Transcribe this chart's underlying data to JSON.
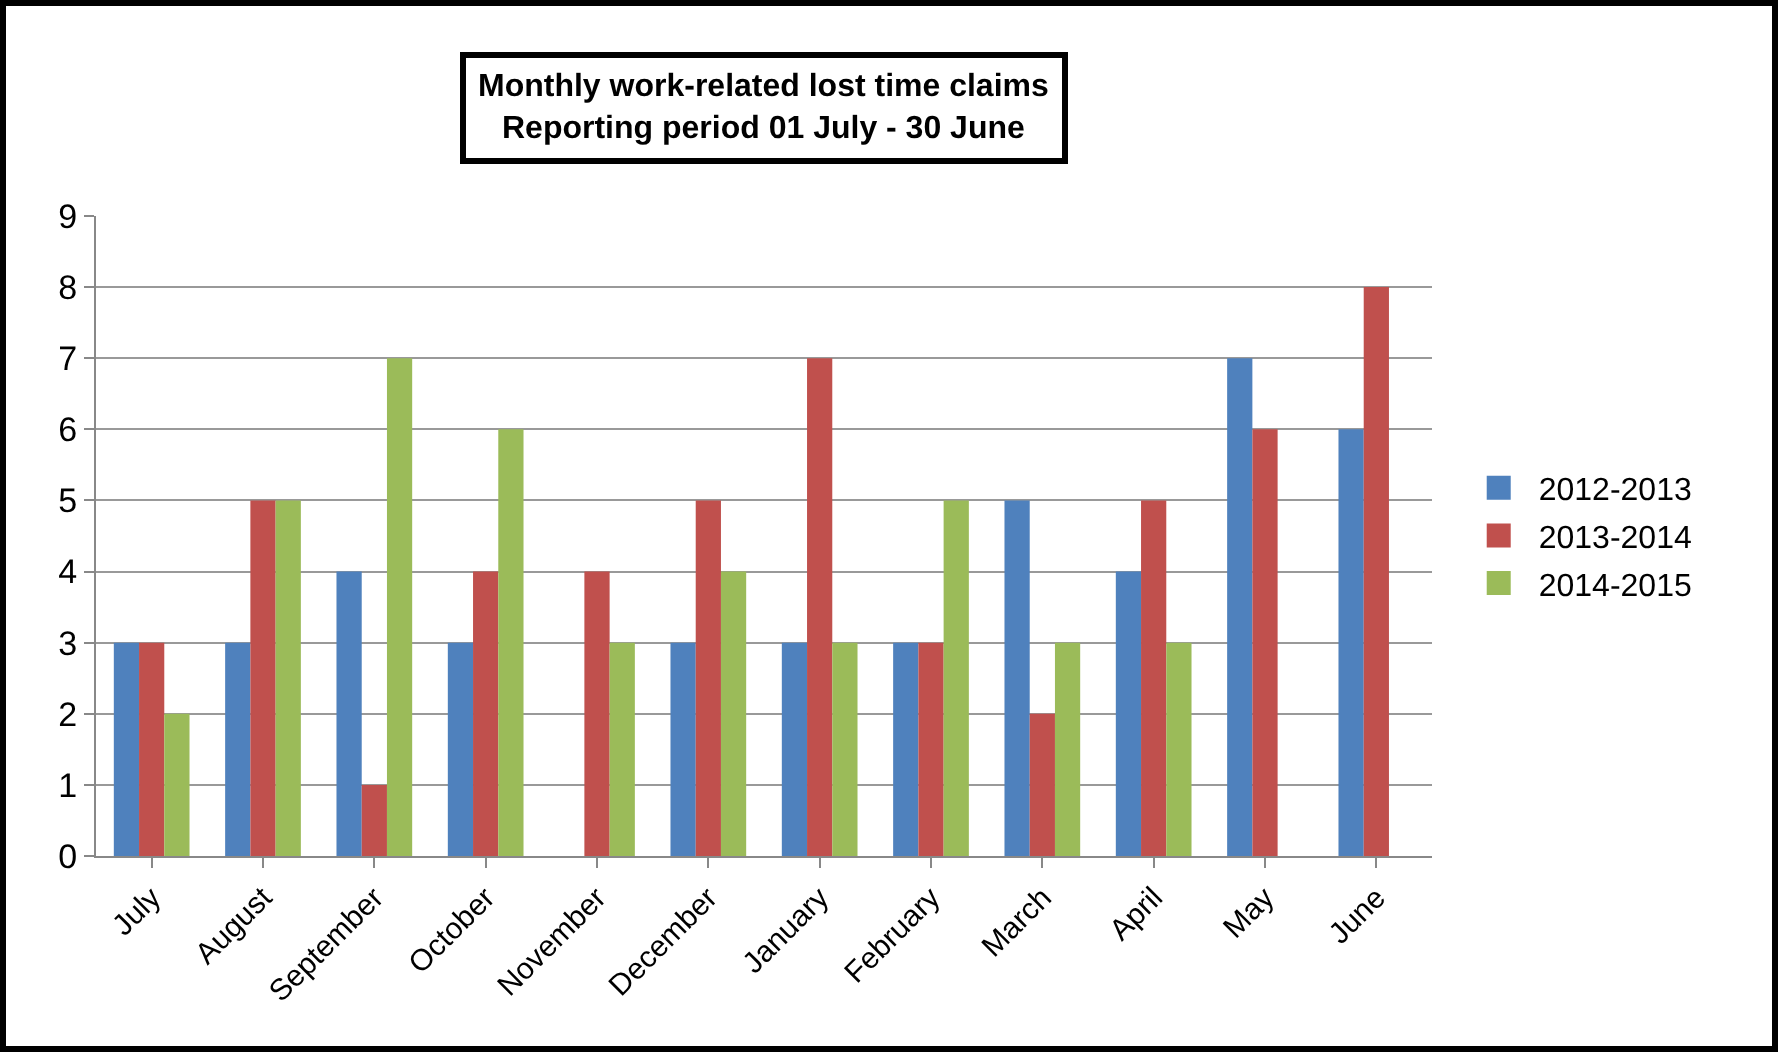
{
  "chart_data": {
    "type": "bar",
    "title": "Monthly work-related lost time claims",
    "subtitle": "Reporting period 01 July - 30 June",
    "categories": [
      "July",
      "August",
      "September",
      "October",
      "November",
      "December",
      "January",
      "February",
      "March",
      "April",
      "May",
      "June"
    ],
    "series": [
      {
        "name": "2012-2013",
        "color": "#4f81bd",
        "values": [
          3,
          3,
          4,
          3,
          null,
          3,
          3,
          3,
          5,
          4,
          7,
          6
        ]
      },
      {
        "name": "2013-2014",
        "color": "#c0504d",
        "values": [
          3,
          5,
          1,
          4,
          4,
          5,
          7,
          3,
          2,
          5,
          6,
          8
        ]
      },
      {
        "name": "2014-2015",
        "color": "#9bbb59",
        "values": [
          2,
          5,
          7,
          6,
          3,
          4,
          3,
          5,
          3,
          3,
          null,
          null
        ]
      }
    ],
    "ylim": [
      0,
      9
    ],
    "yticks": [
      0,
      1,
      2,
      3,
      4,
      5,
      6,
      7,
      8,
      9
    ],
    "grid": "y",
    "legend": "right"
  }
}
